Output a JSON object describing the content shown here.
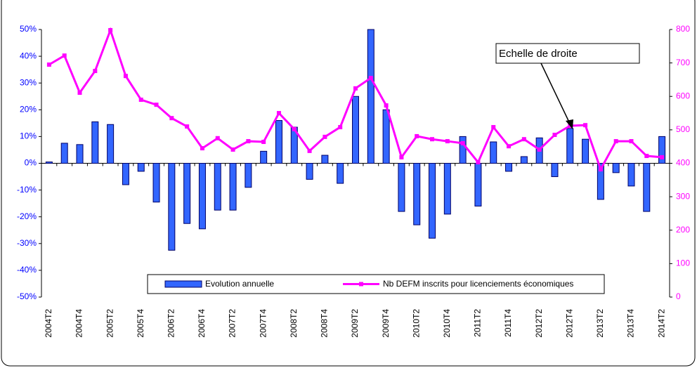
{
  "chart_data": {
    "type": "bar_line",
    "categories": [
      "2004T2",
      null,
      "2004T4",
      null,
      "2005T2",
      null,
      "2005T4",
      null,
      "2006T2",
      null,
      "2006T4",
      null,
      "2007T2",
      null,
      "2007T4",
      null,
      "2008T2",
      null,
      "2008T4",
      null,
      "2009T2",
      null,
      "2009T4",
      null,
      "2010T2",
      null,
      "2010T4",
      null,
      "2011T2",
      null,
      "2011T4",
      null,
      "2012T2",
      null,
      "2012T4",
      null,
      "2013T2",
      null,
      "2013T4",
      null,
      "2014T2"
    ],
    "series": [
      {
        "name": "Evolution annuelle",
        "type": "bar",
        "color": "#3366ff",
        "axis": "y",
        "values": [
          0.5,
          7.5,
          7,
          15.5,
          14.5,
          -8,
          -3,
          -14.5,
          -32.5,
          -22.5,
          -24.5,
          -17.5,
          -17.5,
          -9,
          4.5,
          16,
          13.5,
          -6,
          3,
          -7.5,
          25,
          50,
          20,
          -18,
          -23,
          -28,
          -19,
          10,
          -16,
          8,
          -3,
          2.5,
          9.5,
          -5,
          13,
          9,
          -13.5,
          -3.5,
          -8.5,
          -18,
          10
        ]
      },
      {
        "name": "Nb DEFM inscrits pour licenciements économiques",
        "type": "line",
        "color": "#ff00ff",
        "axis": "y2",
        "values": [
          695,
          722,
          611,
          676,
          798,
          661,
          590,
          575,
          535,
          510,
          445,
          475,
          441,
          466,
          464,
          550,
          502,
          437,
          479,
          508,
          624,
          655,
          573,
          418,
          481,
          472,
          466,
          460,
          403,
          508,
          451,
          472,
          441,
          485,
          512,
          514,
          382,
          466,
          466,
          422,
          418
        ]
      }
    ],
    "ylim": [
      -50,
      50
    ],
    "yticks": [
      {
        "value": -50,
        "label": "-50%"
      },
      {
        "value": -40,
        "label": "-40%"
      },
      {
        "value": -30,
        "label": "-30%"
      },
      {
        "value": -20,
        "label": "-20%"
      },
      {
        "value": -10,
        "label": "-10%"
      },
      {
        "value": 0,
        "label": "0%"
      },
      {
        "value": 10,
        "label": "10%"
      },
      {
        "value": 20,
        "label": "20%"
      },
      {
        "value": 30,
        "label": "30%"
      },
      {
        "value": 40,
        "label": "40%"
      },
      {
        "value": 50,
        "label": "50%"
      }
    ],
    "y2lim": [
      0,
      800
    ],
    "y2ticks": [
      0,
      100,
      200,
      300,
      400,
      500,
      600,
      700,
      800
    ],
    "annotation": "Echelle de droite"
  }
}
